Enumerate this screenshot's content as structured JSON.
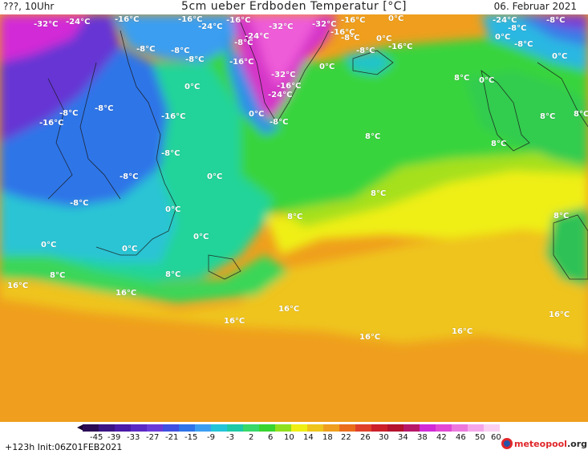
{
  "header": {
    "left": "???, 10Uhr",
    "title": "5cm ueber Erdboden Temperatur [°C]",
    "date": "06. Februar 2021"
  },
  "map": {
    "labels": [
      {
        "text": "-32°C"
      },
      {
        "text": "-24°C"
      },
      {
        "text": "-16°C"
      },
      {
        "text": "-16°C"
      },
      {
        "text": "-24°C"
      },
      {
        "text": "-16°C"
      },
      {
        "text": "-32°C"
      },
      {
        "text": "-32°C"
      },
      {
        "text": "-16°C"
      },
      {
        "text": "0°C"
      },
      {
        "text": "-24°C"
      },
      {
        "text": "-8°C"
      },
      {
        "text": "-24°C"
      },
      {
        "text": "-16°C"
      },
      {
        "text": "-8°C"
      },
      {
        "text": "-8°C"
      },
      {
        "text": "-8°C"
      },
      {
        "text": "0°C"
      },
      {
        "text": "-16°C"
      },
      {
        "text": "0°C"
      },
      {
        "text": "-8°C"
      },
      {
        "text": "-8°C"
      },
      {
        "text": "-8°C"
      },
      {
        "text": "-8°C"
      },
      {
        "text": "-16°C"
      },
      {
        "text": "0°C"
      },
      {
        "text": "0°C"
      },
      {
        "text": "-32°C"
      },
      {
        "text": "-16°C"
      },
      {
        "text": "-24°C"
      },
      {
        "text": "0°C"
      },
      {
        "text": "-8°C"
      },
      {
        "text": "8°C"
      },
      {
        "text": "0°C"
      },
      {
        "text": "-8°C"
      },
      {
        "text": "-8°C"
      },
      {
        "text": "-16°C"
      },
      {
        "text": "-16°C"
      },
      {
        "text": "0°C"
      },
      {
        "text": "-8°C"
      },
      {
        "text": "8°C"
      },
      {
        "text": "8°C"
      },
      {
        "text": "8°C"
      },
      {
        "text": "-8°C"
      },
      {
        "text": "-8°C"
      },
      {
        "text": "0°C"
      },
      {
        "text": "8°C"
      },
      {
        "text": "-8°C"
      },
      {
        "text": "0°C"
      },
      {
        "text": "8°C"
      },
      {
        "text": "0°C"
      },
      {
        "text": "0°C"
      },
      {
        "text": "0°C"
      },
      {
        "text": "8°C"
      },
      {
        "text": "8°C"
      },
      {
        "text": "8°C"
      },
      {
        "text": "16°C"
      },
      {
        "text": "16°C"
      },
      {
        "text": "8°C"
      },
      {
        "text": "16°C"
      },
      {
        "text": "16°C"
      },
      {
        "text": "16°C"
      },
      {
        "text": "16°C"
      },
      {
        "text": "16°C"
      }
    ]
  },
  "scale": {
    "ticks": [
      "-45",
      "-39",
      "-33",
      "-27",
      "-21",
      "-15",
      "-9",
      "-3",
      "2",
      "6",
      "10",
      "14",
      "18",
      "22",
      "26",
      "30",
      "34",
      "38",
      "42",
      "46",
      "50",
      "60"
    ]
  },
  "footer": {
    "run_info": "+123h Init:06Z01FEB2021",
    "logo_main": "meteopool",
    "logo_suffix": ".org"
  },
  "colors": {
    "deep_purple": "#4a1aa8",
    "violet": "#6a3ad8",
    "magenta": "#d22ad6",
    "pink": "#ec5ed8",
    "blue": "#2f5ce8",
    "light_blue": "#3b9ef0",
    "cyan": "#23c4d8",
    "teal": "#1dc9a6",
    "green": "#38d86a",
    "bright_green": "#39d430",
    "yellow_green": "#b8e21e",
    "yellow": "#efef14",
    "gold": "#efc41b",
    "orange": "#ef9f1d"
  }
}
